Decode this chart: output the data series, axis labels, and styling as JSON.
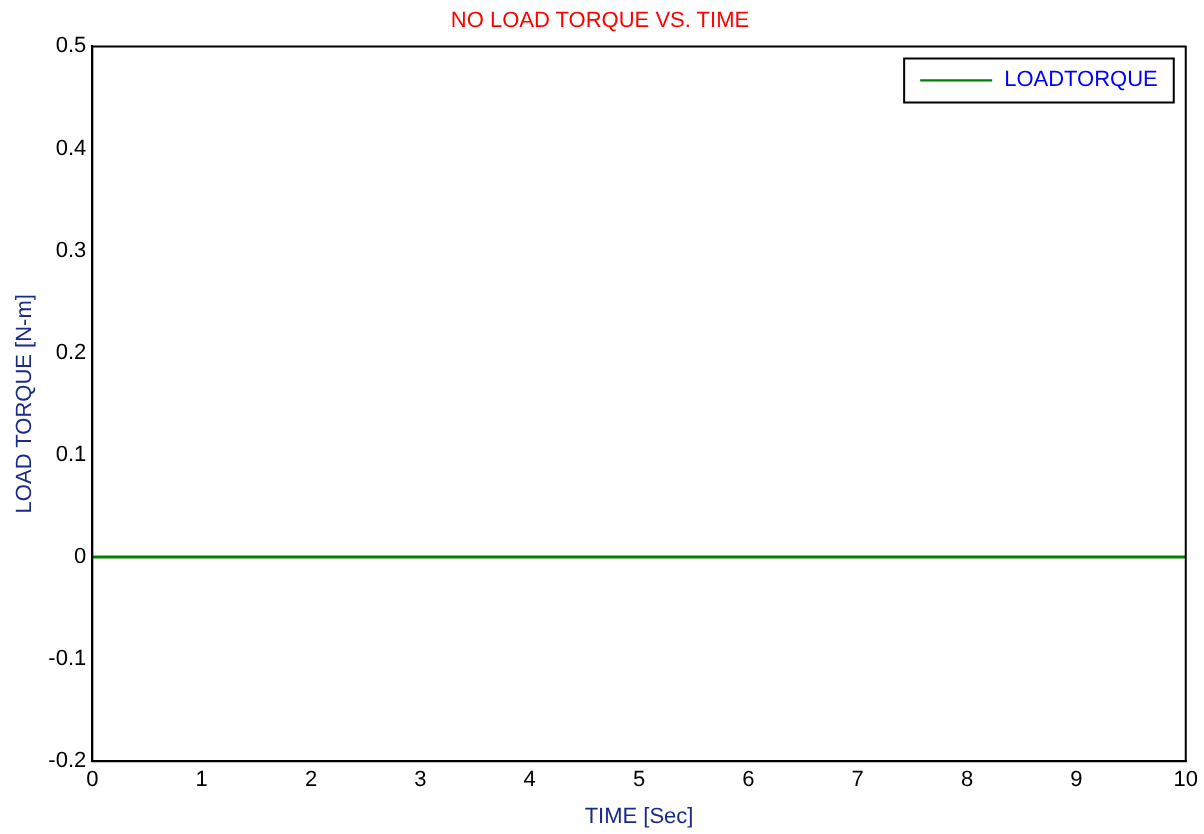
{
  "chart_data": {
    "type": "line",
    "title": "NO LOAD TORQUE VS. TIME",
    "xlabel": "TIME [Sec]",
    "ylabel": "LOAD TORQUE [N-m]",
    "x": [
      0,
      10
    ],
    "series": [
      {
        "name": "LOADTORQUE",
        "color": "#008000",
        "values": [
          0,
          0
        ]
      }
    ],
    "xlim": [
      0,
      10
    ],
    "xticks": [
      0,
      1,
      2,
      3,
      4,
      5,
      6,
      7,
      8,
      9,
      10
    ],
    "ylim": [
      -0.2,
      0.5
    ],
    "yticks": [
      -0.2,
      -0.1,
      0,
      0.1,
      0.2,
      0.3,
      0.4,
      0.5
    ],
    "grid": false,
    "legend": "top right",
    "marker": "none",
    "line_style": "solid"
  }
}
